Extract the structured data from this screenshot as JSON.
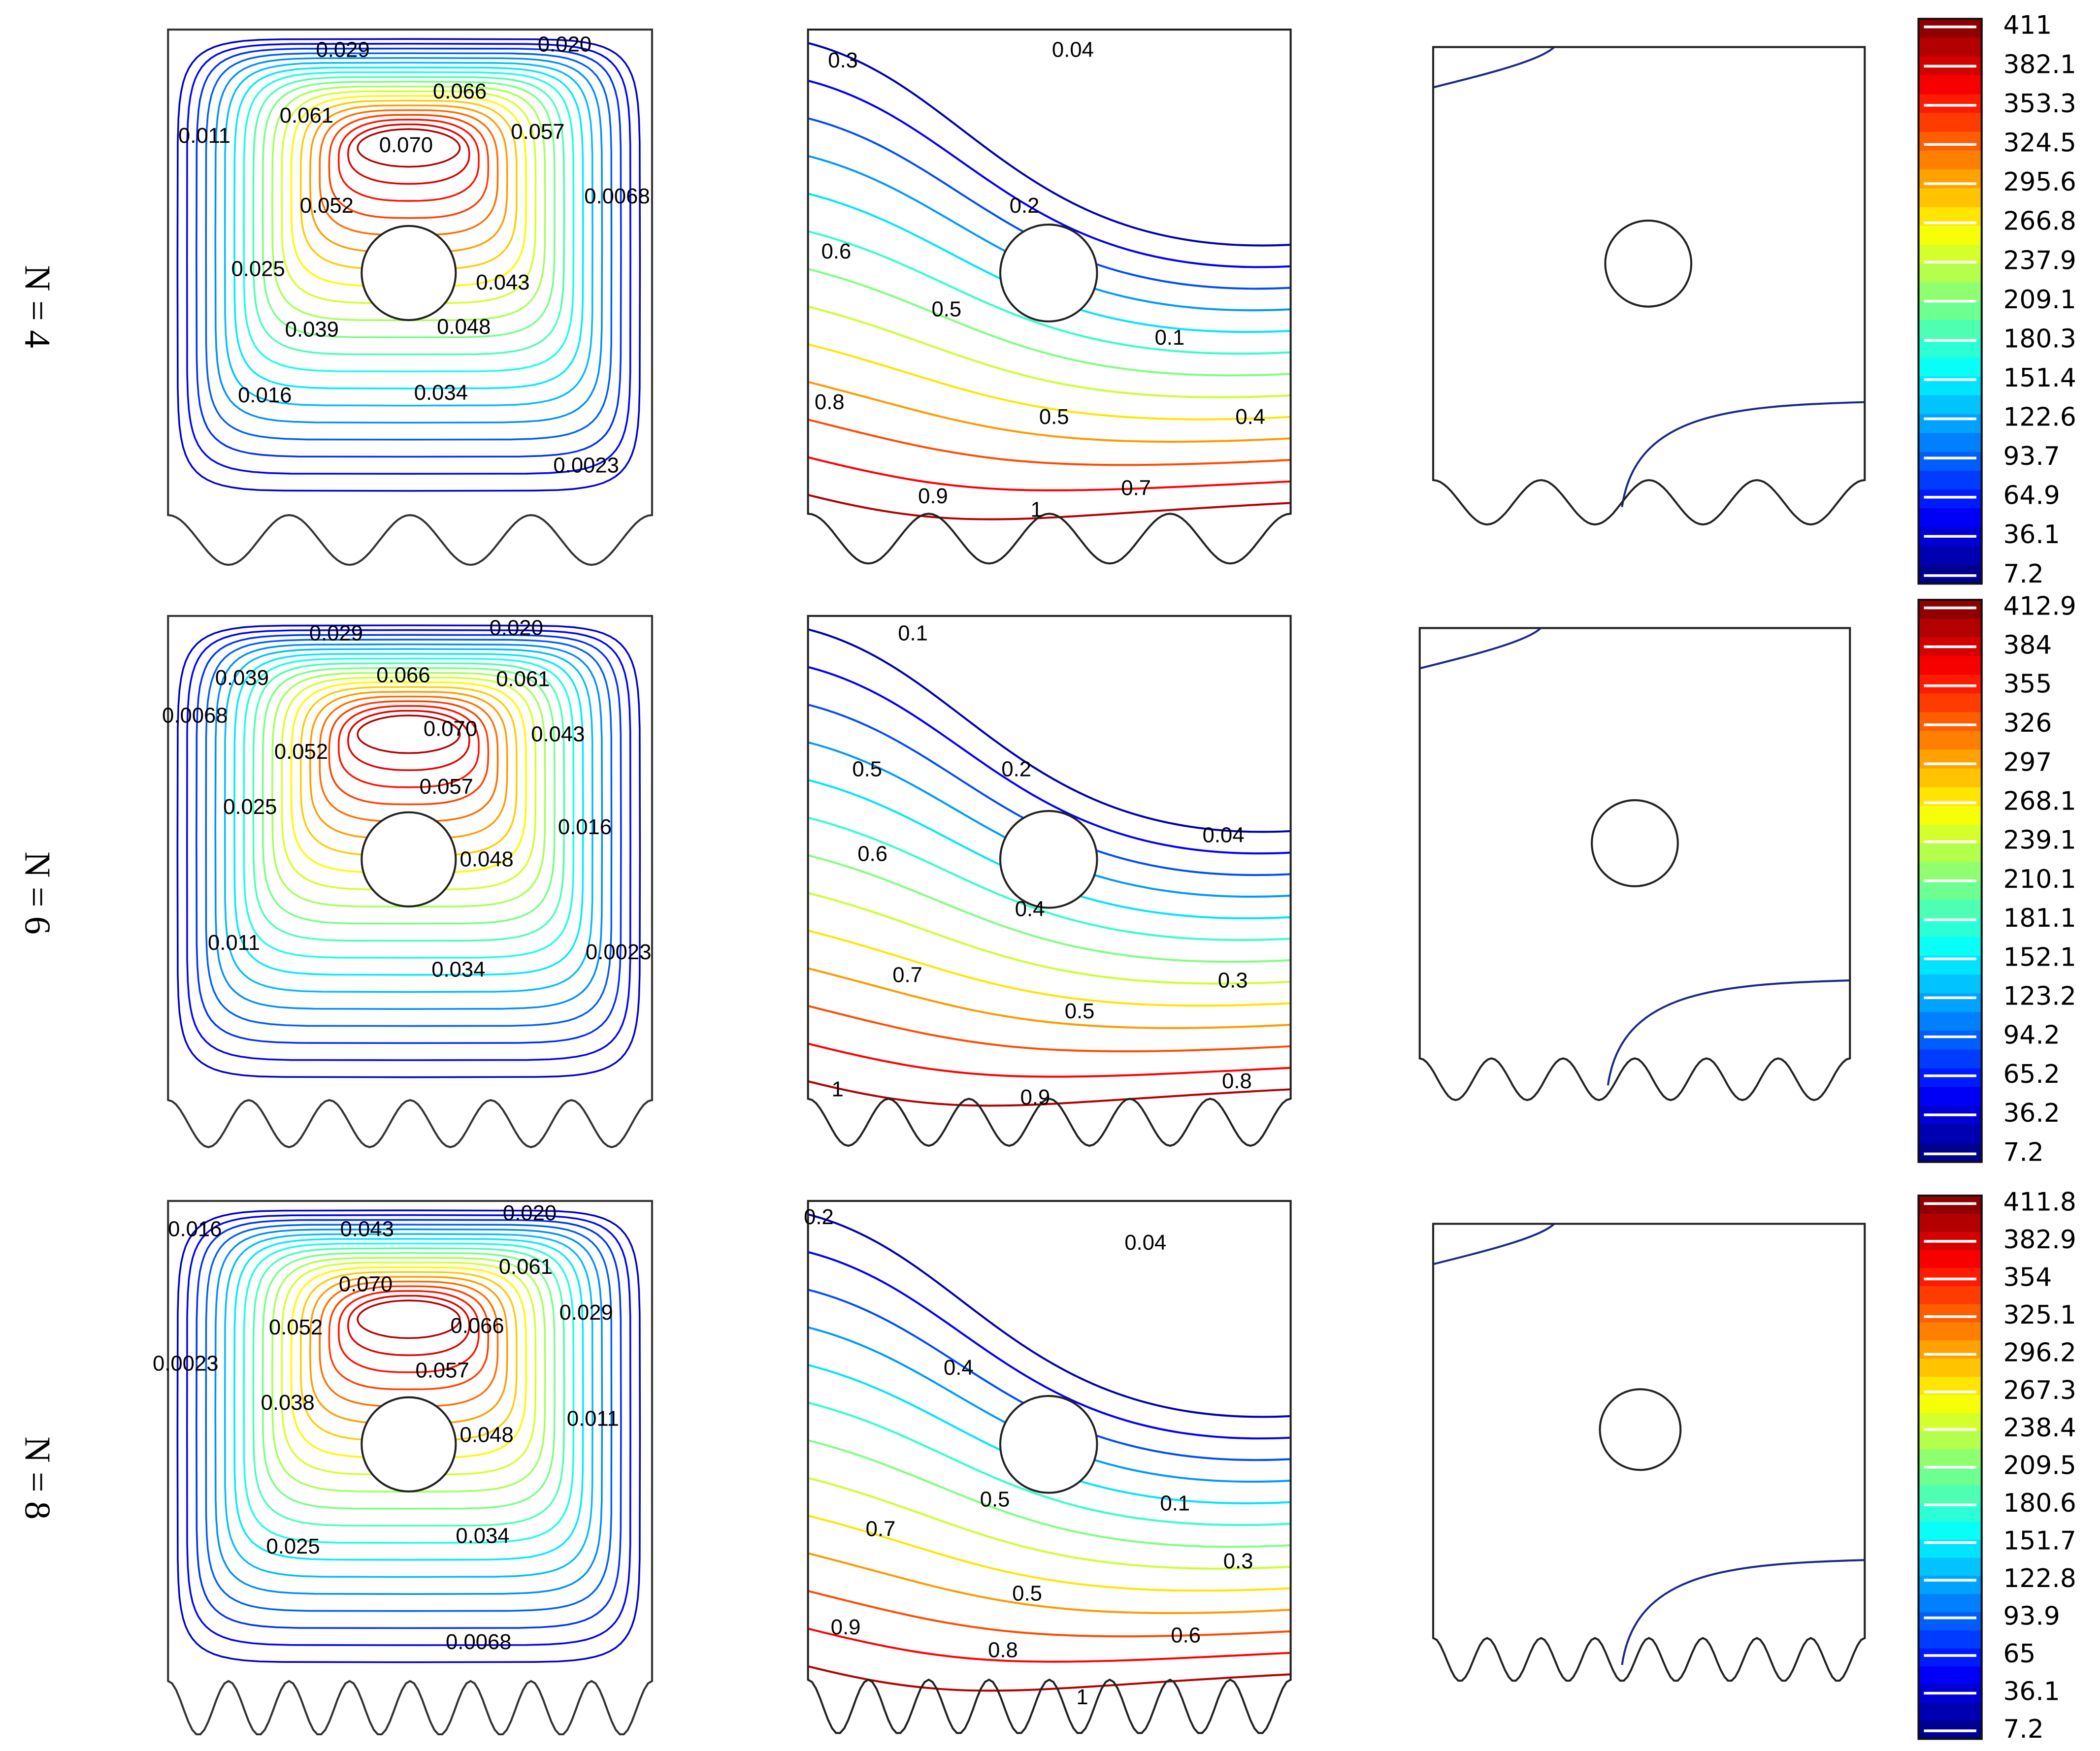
{
  "rows": [
    {
      "label": "N = 4",
      "streamline_labels": [
        "0.029",
        "0.020",
        "0.066",
        "0.061",
        "0.070",
        "0.057",
        "0.011",
        "0.052",
        "0.0068",
        "0.025",
        "0.043",
        "0.039",
        "0.048",
        "0.016",
        "0.034",
        "0.0023"
      ],
      "isotherm_labels": [
        "0.04",
        "0.3",
        "0.2",
        "0.6",
        "0.5",
        "0.1",
        "0.8",
        "0.5",
        "0.4",
        "0.7",
        "0.9",
        "1"
      ],
      "colorbar": {
        "lim": [
          7.2,
          411
        ],
        "ticks": [
          411,
          382.1,
          353.3,
          324.5,
          295.6,
          266.8,
          237.9,
          209.1,
          180.3,
          151.4,
          122.6,
          93.7,
          64.9,
          36.1,
          7.2
        ]
      }
    },
    {
      "label": "N = 6",
      "streamline_labels": [
        "0.029",
        "0.020",
        "0.039",
        "0.066",
        "0.061",
        "0.0068",
        "0.070",
        "0.043",
        "0.052",
        "0.057",
        "0.025",
        "0.016",
        "0.048",
        "0.011",
        "0.0023",
        "0.034"
      ],
      "isotherm_labels": [
        "0.1",
        "0.5",
        "0.2",
        "0.04",
        "0.6",
        "0.4",
        "0.7",
        "0.3",
        "0.5",
        "1",
        "0.9",
        "0.8"
      ],
      "colorbar": {
        "lim": [
          7.2,
          412.9
        ],
        "ticks": [
          412.9,
          384,
          355,
          326,
          297,
          268.1,
          239.1,
          210.1,
          181.1,
          152.1,
          123.2,
          94.2,
          65.2,
          36.2,
          7.2
        ]
      }
    },
    {
      "label": "N = 8",
      "streamline_labels": [
        "0.020",
        "0.016",
        "0.043",
        "0.070",
        "0.061",
        "0.029",
        "0.052",
        "0.066",
        "0.0023",
        "0.057",
        "0.038",
        "0.011",
        "0.048",
        "0.034",
        "0.025",
        "0.0068"
      ],
      "isotherm_labels": [
        "0.2",
        "0.04",
        "0.4",
        "0.5",
        "0.1",
        "0.7",
        "0.3",
        "0.5",
        "0.9",
        "0.6",
        "0.8",
        "1"
      ],
      "colorbar": {
        "lim": [
          7.2,
          411.8
        ],
        "ticks": [
          411.8,
          382.9,
          354,
          325.1,
          296.2,
          267.3,
          238.4,
          209.5,
          180.6,
          151.7,
          122.8,
          93.9,
          65,
          36.1,
          7.2
        ]
      }
    }
  ]
}
